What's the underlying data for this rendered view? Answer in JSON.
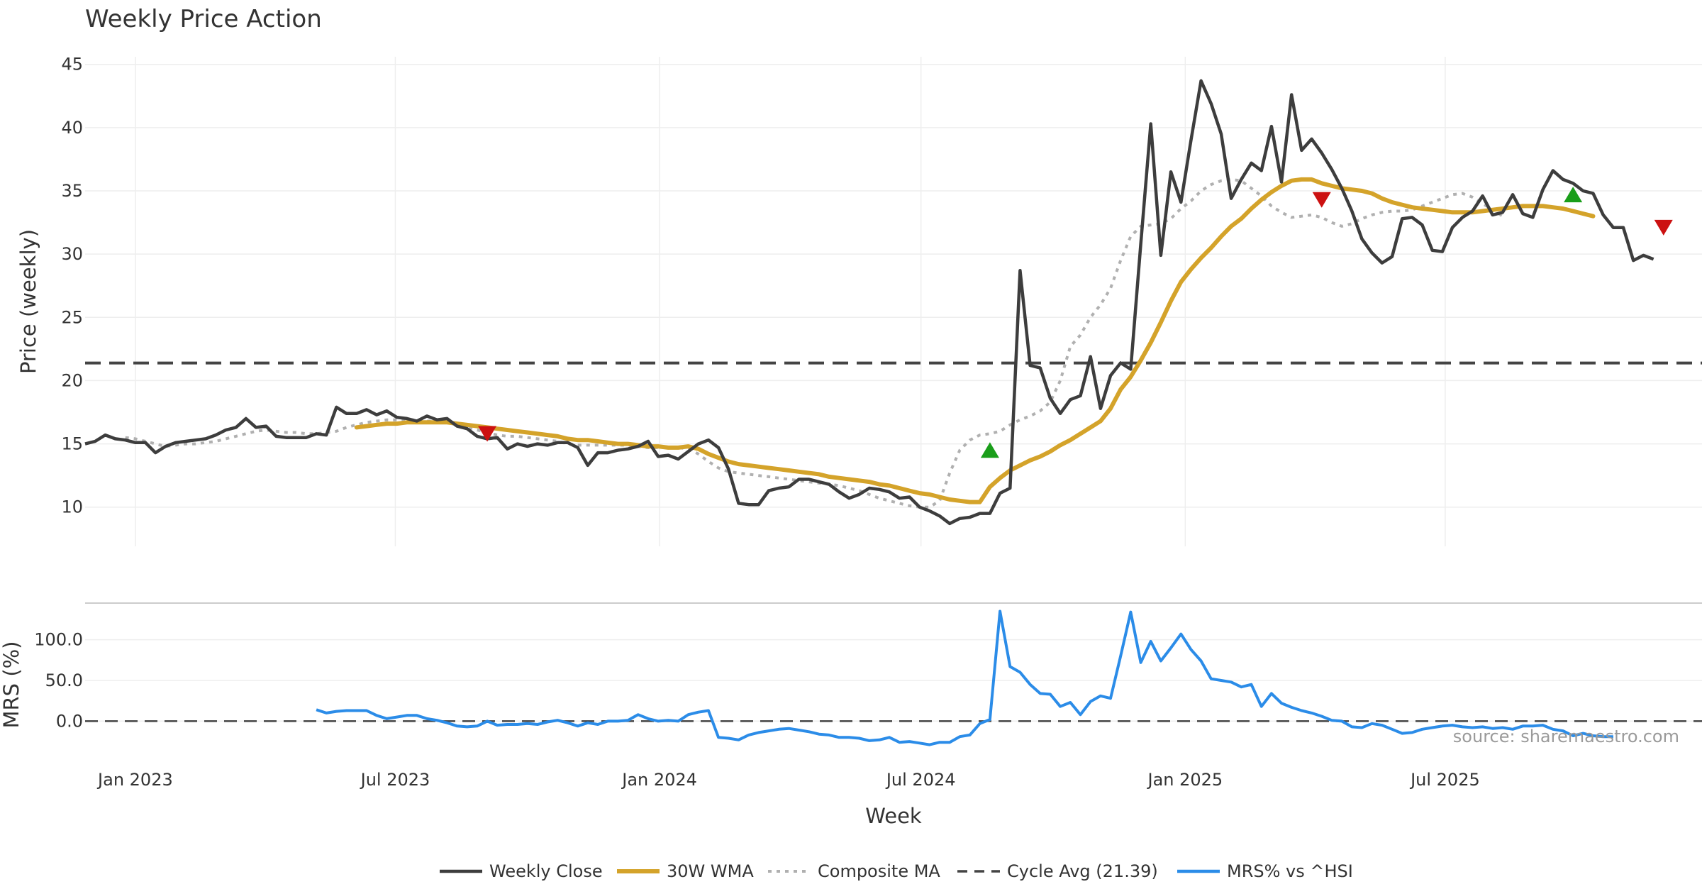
{
  "chart_data": {
    "type": "line",
    "title": "Weekly Price Action",
    "xlabel": "Week",
    "x_ticks": [
      "Jan 2023",
      "Jul 2023",
      "Jan 2024",
      "Jul 2024",
      "Jan 2025",
      "Jul 2025"
    ],
    "x_tick_dates": [
      "2023-01-01",
      "2023-07-01",
      "2024-01-01",
      "2024-07-01",
      "2025-01-01",
      "2025-07-01"
    ],
    "x_range": [
      "2022-11-27",
      "2025-12-10"
    ],
    "annotation": "source: sharemaestro.com",
    "colors": {
      "close": "#3d3d3d",
      "wma": "#d4a32a",
      "composite": "#b0b0b0",
      "cycle": "#444444",
      "mrs": "#2b8ce8",
      "buy": "#1a9e1a",
      "sell": "#cc1111"
    },
    "panels": {
      "price": {
        "ylabel": "Price (weekly)",
        "y_ticks": [
          10,
          15,
          20,
          25,
          30,
          35,
          40,
          45
        ],
        "ylim": [
          6.9,
          45.6
        ],
        "grid": true
      },
      "mrs": {
        "ylabel": "MRS (%)",
        "y_ticks": [
          "0.0",
          "50.0",
          "100.0"
        ],
        "y_tick_values": [
          0,
          50,
          100
        ],
        "ylim": [
          -45,
          145
        ],
        "grid": true
      }
    },
    "legend": {
      "placement": "bottom-center",
      "items": [
        {
          "label": "Weekly Close",
          "key": "close"
        },
        {
          "label": "30W WMA",
          "key": "wma"
        },
        {
          "label": "Composite MA",
          "key": "composite"
        },
        {
          "label": "Cycle Avg (21.39)",
          "key": "cycle"
        },
        {
          "label": "MRS% vs ^HSI",
          "key": "mrs"
        }
      ]
    },
    "cycle_avg": 21.39,
    "series": [
      {
        "name": "Weekly Close",
        "x_start": "2022-11-27",
        "step_days": 7,
        "values": [
          15.0,
          15.2,
          15.7,
          15.4,
          15.3,
          15.1,
          15.1,
          14.3,
          14.8,
          15.1,
          15.2,
          15.3,
          15.4,
          15.7,
          16.1,
          16.3,
          17.0,
          16.3,
          16.4,
          15.6,
          15.5,
          15.5,
          15.5,
          15.8,
          15.7,
          17.9,
          17.4,
          17.4,
          17.7,
          17.3,
          17.6,
          17.1,
          17.0,
          16.8,
          17.2,
          16.9,
          17.0,
          16.4,
          16.2,
          15.6,
          15.4,
          15.5,
          14.6,
          15.0,
          14.8,
          15.0,
          14.9,
          15.1,
          15.1,
          14.7,
          13.3,
          14.3,
          14.3,
          14.5,
          14.6,
          14.8,
          15.2,
          14.0,
          14.1,
          13.8,
          14.4,
          15.0,
          15.3,
          14.7,
          13.0,
          10.3,
          10.2,
          10.2,
          11.3,
          11.5,
          11.6,
          12.2,
          12.2,
          12.0,
          11.8,
          11.2,
          10.7,
          11.0,
          11.5,
          11.4,
          11.2,
          10.7,
          10.8,
          10.0,
          9.7,
          9.3,
          8.7,
          9.1,
          9.2,
          9.5,
          9.5,
          11.1,
          11.5,
          28.7,
          21.2,
          21.0,
          18.6,
          17.4,
          18.5,
          18.8,
          21.9,
          17.8,
          20.4,
          21.4,
          20.9,
          30.8,
          40.3,
          29.9,
          36.5,
          34.1,
          39.0,
          43.7,
          41.9,
          39.5,
          34.4,
          35.9,
          37.2,
          36.6,
          40.1,
          35.7,
          42.6,
          38.2,
          39.1,
          38.0,
          36.7,
          35.2,
          33.4,
          31.2,
          30.1,
          29.3,
          29.8,
          32.8,
          32.9,
          32.3,
          30.3,
          30.2,
          32.1,
          32.9,
          33.4,
          34.6,
          33.1,
          33.3,
          34.7,
          33.2,
          32.9,
          35.1,
          36.6,
          35.9,
          35.6,
          35.0,
          34.8,
          33.1,
          32.1,
          32.1,
          29.5,
          29.9,
          29.6
        ]
      },
      {
        "name": "30W WMA",
        "x_start": "2023-06-04",
        "step_days": 7,
        "values": [
          16.3,
          16.4,
          16.5,
          16.6,
          16.6,
          16.7,
          16.7,
          16.7,
          16.7,
          16.7,
          16.6,
          16.5,
          16.4,
          16.3,
          16.2,
          16.1,
          16.0,
          15.9,
          15.8,
          15.7,
          15.6,
          15.4,
          15.3,
          15.3,
          15.2,
          15.1,
          15.0,
          15.0,
          14.9,
          14.8,
          14.8,
          14.7,
          14.7,
          14.8,
          14.6,
          14.2,
          13.9,
          13.6,
          13.4,
          13.3,
          13.2,
          13.1,
          13.0,
          12.9,
          12.8,
          12.7,
          12.6,
          12.4,
          12.3,
          12.2,
          12.1,
          12.0,
          11.8,
          11.7,
          11.5,
          11.3,
          11.1,
          11.0,
          10.8,
          10.6,
          10.5,
          10.4,
          10.4,
          11.6,
          12.3,
          12.9,
          13.3,
          13.7,
          14.0,
          14.4,
          14.9,
          15.3,
          15.8,
          16.3,
          16.8,
          17.8,
          19.3,
          20.3,
          21.6,
          23.0,
          24.6,
          26.3,
          27.8,
          28.8,
          29.7,
          30.5,
          31.4,
          32.2,
          32.8,
          33.6,
          34.3,
          34.9,
          35.4,
          35.8,
          35.9,
          35.9,
          35.6,
          35.4,
          35.2,
          35.1,
          35.0,
          34.8,
          34.4,
          34.1,
          33.9,
          33.7,
          33.6,
          33.5,
          33.4,
          33.3,
          33.3,
          33.3,
          33.4,
          33.5,
          33.6,
          33.7,
          33.8,
          33.8,
          33.8,
          33.7,
          33.6,
          33.4,
          33.2,
          33.0
        ]
      },
      {
        "name": "Composite MA",
        "x_start": "2022-12-25",
        "step_days": 7,
        "values": [
          15.5,
          15.4,
          15.2,
          15.0,
          14.8,
          14.9,
          15.0,
          15.0,
          15.1,
          15.2,
          15.4,
          15.6,
          15.8,
          16.0,
          16.1,
          16.0,
          15.9,
          15.9,
          15.8,
          15.8,
          15.9,
          16.0,
          16.3,
          16.5,
          16.7,
          16.8,
          16.9,
          16.9,
          16.9,
          16.9,
          16.8,
          16.8,
          16.7,
          16.5,
          16.3,
          16.1,
          15.9,
          15.7,
          15.6,
          15.6,
          15.5,
          15.4,
          15.3,
          15.2,
          15.0,
          14.9,
          14.9,
          14.9,
          14.9,
          14.9,
          14.9,
          14.8,
          14.7,
          14.7,
          14.7,
          14.7,
          14.6,
          14.2,
          13.6,
          13.1,
          12.8,
          12.7,
          12.6,
          12.5,
          12.4,
          12.3,
          12.2,
          12.1,
          12.0,
          11.9,
          11.8,
          11.7,
          11.5,
          11.3,
          11.0,
          10.7,
          10.5,
          10.3,
          10.1,
          10.0,
          10.0,
          10.5,
          12.7,
          14.5,
          15.3,
          15.7,
          15.8,
          16.0,
          16.5,
          16.9,
          17.2,
          17.6,
          18.3,
          20.0,
          22.7,
          23.6,
          25.0,
          26.0,
          27.3,
          29.5,
          31.4,
          32.2,
          32.3,
          32.4,
          32.8,
          33.6,
          34.2,
          35.0,
          35.5,
          35.8,
          35.9,
          35.8,
          35.2,
          34.6,
          33.8,
          33.3,
          32.9,
          33.0,
          33.1,
          32.9,
          32.5,
          32.2,
          32.4,
          32.8,
          33.1,
          33.3,
          33.4,
          33.4,
          33.5,
          33.8,
          34.1,
          34.4,
          34.7,
          34.8,
          34.5,
          34.0,
          33.5,
          33.0
        ]
      },
      {
        "name": "MRS% vs ^HSI",
        "x_start": "2023-05-07",
        "step_days": 7,
        "values": [
          14,
          10,
          12,
          13,
          13,
          13,
          7,
          3,
          5,
          7,
          7,
          3,
          1,
          -2,
          -6,
          -7,
          -6,
          0,
          -5,
          -4,
          -4,
          -3,
          -4,
          -1,
          1,
          -2,
          -6,
          -2,
          -4,
          0,
          0,
          1,
          8,
          3,
          0,
          1,
          0,
          8,
          11,
          13,
          -20,
          -21,
          -23,
          -17,
          -14,
          -12,
          -10,
          -9,
          -11,
          -13,
          -16,
          -17,
          -20,
          -20,
          -21,
          -24,
          -23,
          -20,
          -26,
          -25,
          -27,
          -29,
          -26,
          -26,
          -19,
          -17,
          -3,
          2,
          135,
          67,
          60,
          45,
          34,
          33,
          18,
          23,
          8,
          24,
          31,
          28,
          80,
          134,
          72,
          98,
          74,
          90,
          107,
          88,
          74,
          52,
          50,
          48,
          42,
          45,
          18,
          34,
          22,
          17,
          13,
          10,
          6,
          1,
          0,
          -7,
          -8,
          -3,
          -5,
          -10,
          -15,
          -14,
          -10,
          -8,
          -6,
          -5,
          -7,
          -8,
          -7,
          -9,
          -8,
          -10,
          -6,
          -6,
          -5,
          -10,
          -12,
          -18,
          -15,
          -18,
          -19,
          -19
        ]
      }
    ],
    "markers": {
      "buy": [
        {
          "date": "2024-08-18",
          "value": 14.4
        },
        {
          "date": "2025-09-28",
          "value": 34.6
        }
      ],
      "sell": [
        {
          "date": "2023-09-03",
          "value": 15.9
        },
        {
          "date": "2025-04-06",
          "value": 34.4
        },
        {
          "date": "2025-11-30",
          "value": 32.2
        }
      ]
    }
  }
}
